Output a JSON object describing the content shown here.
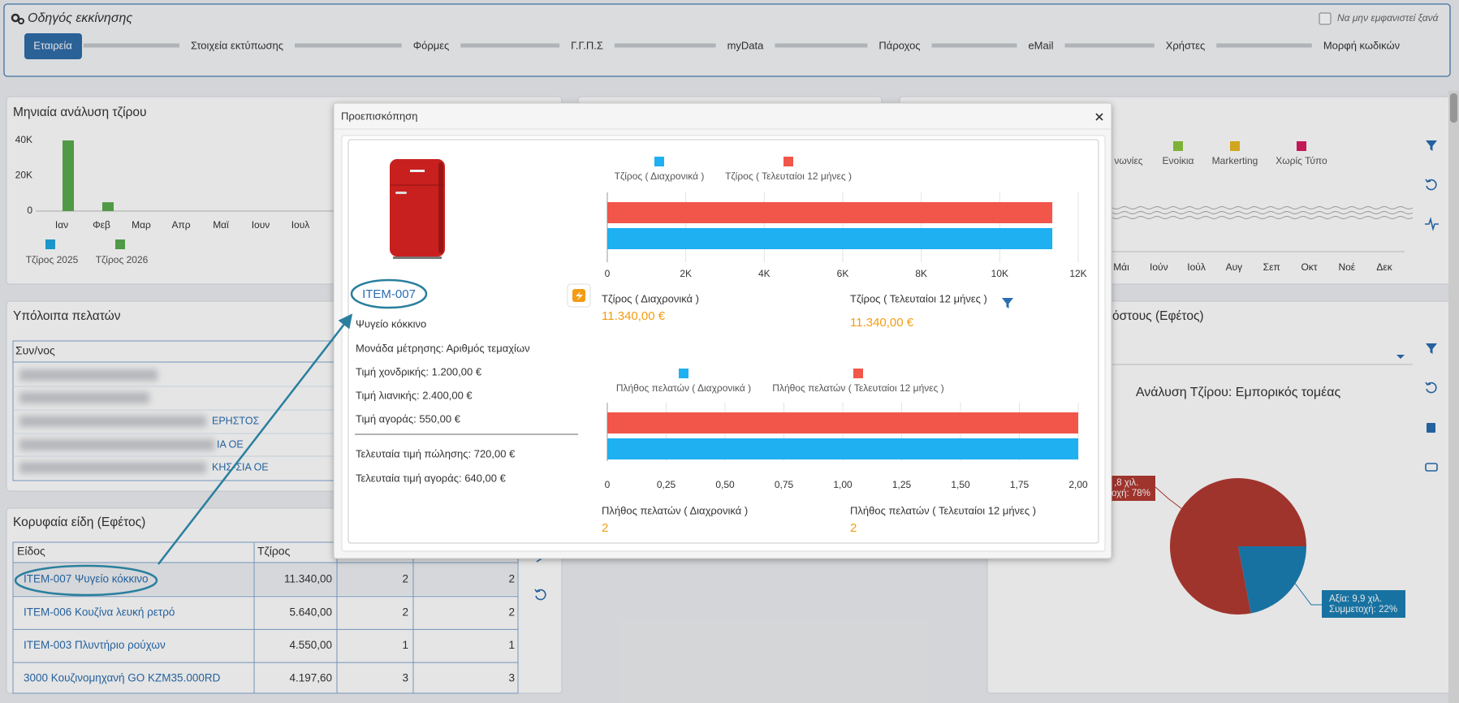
{
  "wizard": {
    "title": "Οδηγός εκκίνησης",
    "dont_show": "Να μην εμφανιστεί ξανά",
    "steps": [
      "Εταιρεία",
      "Στοιχεία εκτύπωσης",
      "Φόρμες",
      "Γ.Γ.Π.Σ",
      "myData",
      "Πάροχος",
      "eMail",
      "Χρήστες",
      "Μορφή κωδικών"
    ]
  },
  "monthly": {
    "type": "bar",
    "title": "Μηνιαία ανάλυση τζίρου",
    "categories": [
      "Ιαν",
      "Φεβ",
      "Μαρ",
      "Απρ",
      "Μαϊ",
      "Ιουν",
      "Ιουλ"
    ],
    "ylim": [
      0,
      40000
    ],
    "yticks": [
      0,
      {
        "value": 20000,
        "label": "20K"
      },
      {
        "value": 40000,
        "label": "40K"
      }
    ],
    "series": [
      {
        "name": "Τζίρος 2025",
        "color": "#1ea7e1",
        "values": [
          0,
          0,
          0,
          0,
          0,
          0,
          0
        ]
      },
      {
        "name": "Τζίρος 2026",
        "color": "#5aab4e",
        "values": [
          40000,
          5000,
          0,
          0,
          0,
          0,
          0
        ]
      }
    ]
  },
  "expenses": {
    "legend": [
      {
        "name": "νωνίες"
      },
      {
        "name": "Ενοίκια",
        "color": "#8dc63f"
      },
      {
        "name": "Markerting",
        "color": "#e8b923"
      },
      {
        "name": "Χωρίς Τύπο",
        "color": "#d81b60"
      }
    ],
    "months": [
      "Μάι",
      "Ιούν",
      "Ιούλ",
      "Αυγ",
      "Σεπ",
      "Οκτ",
      "Νοέ",
      "Δεκ"
    ]
  },
  "balances": {
    "title": "Υπόλοιπα πελατών",
    "header": "Συν/νος",
    "fragments": [
      "ΕΡΗΣΤΟΣ",
      "ΙΑ ΟΕ",
      "ΚΗΣ-ΣΙΑ ΟΕ"
    ]
  },
  "top_items": {
    "title": "Κορυφαία είδη (Εφέτος)",
    "headers": [
      "Είδος",
      "Τζίρος"
    ],
    "rows": [
      [
        "ITEM-007 Ψυγείο κόκκινο",
        "11.340,00",
        2,
        2
      ],
      [
        "ITEM-006 Κουζίνα λευκή ρετρό",
        "5.640,00",
        2,
        2
      ],
      [
        "ITEM-003 Πλυντήριο ρούχων",
        "4.550,00",
        1,
        1
      ],
      [
        "3000 Κουζινομηχανή GO KZM35.000RD",
        "4.197,60",
        3,
        3
      ]
    ]
  },
  "pie": {
    "type": "pie",
    "panel_title": "όστους (Εφέτος)",
    "title": "Ανάλυση Τζίρου: Εμπορικός τομέας",
    "values": [
      22,
      78
    ],
    "colors": [
      "#1a7fb5",
      "#b23a33"
    ],
    "labels": [
      [
        "Αξία: 9,9 χιλ.",
        "Συμμετοχή: 22%"
      ],
      [
        ",8 χιλ.",
        "οχή: 78%"
      ]
    ]
  },
  "modal": {
    "title": "Προεπισκόπηση",
    "code": "ITEM-007",
    "fields": [
      "Ψυγείο κόκκινο",
      "Μονάδα μέτρησης: Αριθμός τεμαχίων",
      "Τιμή χονδρικής: 1.200,00 €",
      "Τιμή λιανικής: 2.400,00 €",
      "Τιμή αγοράς: 550,00 €"
    ],
    "fields2": [
      "Τελευταία τιμή πώλησης: 720,00 €",
      "Τελευταία τιμή αγοράς: 640,00 €"
    ],
    "charts": [
      {
        "type": "bar",
        "orientation": "horizontal",
        "series": [
          {
            "name": "Τζίρος ( Διαχρονικά )",
            "color": "#1eb0f0",
            "values": [
              11340
            ]
          },
          {
            "name": "Τζίρος ( Τελευταίοι 12 μήνες )",
            "color": "#f2564b",
            "values": [
              11340
            ]
          }
        ],
        "xlim": [
          0,
          12000
        ],
        "xticks": [
          0,
          {
            "value": 2000,
            "label": "2K"
          },
          {
            "value": 4000,
            "label": "4K"
          },
          {
            "value": 6000,
            "label": "6K"
          },
          {
            "value": 8000,
            "label": "8K"
          },
          {
            "value": 10000,
            "label": "10K"
          },
          {
            "value": 12000,
            "label": "12K"
          }
        ],
        "stats": [
          {
            "label": "Τζίρος ( Διαχρονικά )",
            "value": "11.340,00 €"
          },
          {
            "label": "Τζίρος ( Τελευταίοι 12 μήνες )",
            "value": "11.340,00 €"
          }
        ]
      },
      {
        "type": "bar",
        "orientation": "horizontal",
        "series": [
          {
            "name": "Πλήθος πελατών ( Διαχρονικά )",
            "color": "#1eb0f0",
            "values": [
              2
            ]
          },
          {
            "name": "Πλήθος πελατών ( Τελευταίοι 12 μήνες )",
            "color": "#f2564b",
            "values": [
              2
            ]
          }
        ],
        "xlim": [
          0,
          2
        ],
        "xticks": [
          0,
          {
            "value": 0.25,
            "label": "0,25"
          },
          {
            "value": 0.5,
            "label": "0,50"
          },
          {
            "value": 0.75,
            "label": "0,75"
          },
          {
            "value": 1,
            "label": "1,00"
          },
          {
            "value": 1.25,
            "label": "1,25"
          },
          {
            "value": 1.5,
            "label": "1,50"
          },
          {
            "value": 1.75,
            "label": "1,75"
          },
          {
            "value": 2,
            "label": "2,00"
          }
        ],
        "stats": [
          {
            "label": "Πλήθος πελατών ( Διαχρονικά )",
            "value": 2
          },
          {
            "label": "Πλήθος πελατών ( Τελευταίοι 12 μήνες )",
            "value": 2
          }
        ]
      }
    ]
  }
}
